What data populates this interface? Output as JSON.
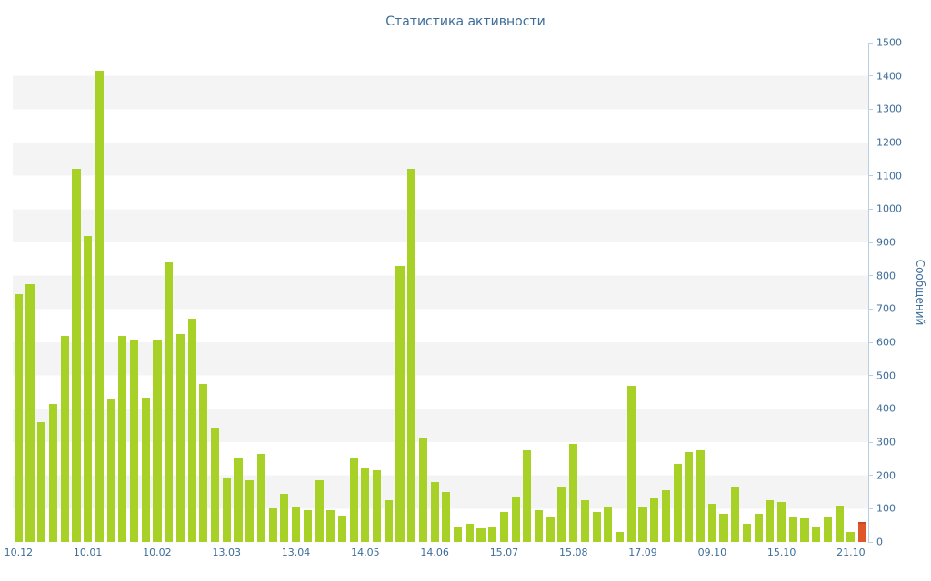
{
  "page": {
    "background": "#ffffff"
  },
  "chart_data": {
    "type": "bar",
    "title": "Статистика активности",
    "ylabel": "Сообщений",
    "xlabel": "",
    "ylim": [
      0,
      1500
    ],
    "ytick_step": 100,
    "yaxis_side": "right",
    "grid": "horizontal-stripes",
    "legend": "none",
    "values": [
      745,
      775,
      360,
      415,
      620,
      1120,
      920,
      1415,
      430,
      620,
      605,
      435,
      605,
      840,
      625,
      670,
      475,
      340,
      190,
      250,
      185,
      265,
      100,
      145,
      105,
      95,
      185,
      95,
      80,
      250,
      220,
      215,
      125,
      830,
      1120,
      315,
      180,
      150,
      45,
      55,
      40,
      45,
      90,
      135,
      275,
      95,
      75,
      165,
      295,
      125,
      90,
      105,
      30,
      470,
      105,
      130,
      155,
      235,
      270,
      275,
      115,
      85,
      165,
      55,
      85,
      125,
      120,
      75,
      70,
      45,
      75,
      110,
      30,
      55
    ],
    "highlight_index": 73,
    "x_labels": [
      {
        "text": "10.12",
        "bar": 0
      },
      {
        "text": "10.01",
        "bar": 6
      },
      {
        "text": "10.02",
        "bar": 12
      },
      {
        "text": "13.03",
        "bar": 18
      },
      {
        "text": "13.04",
        "bar": 24
      },
      {
        "text": "14.05",
        "bar": 30
      },
      {
        "text": "14.06",
        "bar": 36
      },
      {
        "text": "15.07",
        "bar": 42
      },
      {
        "text": "15.08",
        "bar": 48
      },
      {
        "text": "17.09",
        "bar": 54
      },
      {
        "text": "09.10",
        "bar": 60
      },
      {
        "text": "15.10",
        "bar": 66
      },
      {
        "text": "21.10",
        "bar": 72
      }
    ],
    "colors": {
      "bar": "#a8d128",
      "highlight": "#e0562b",
      "highlight_border": "#c74b24",
      "text": "#3d6d99",
      "stripe": "#f4f4f4",
      "axis": "#b9cfe4"
    }
  }
}
